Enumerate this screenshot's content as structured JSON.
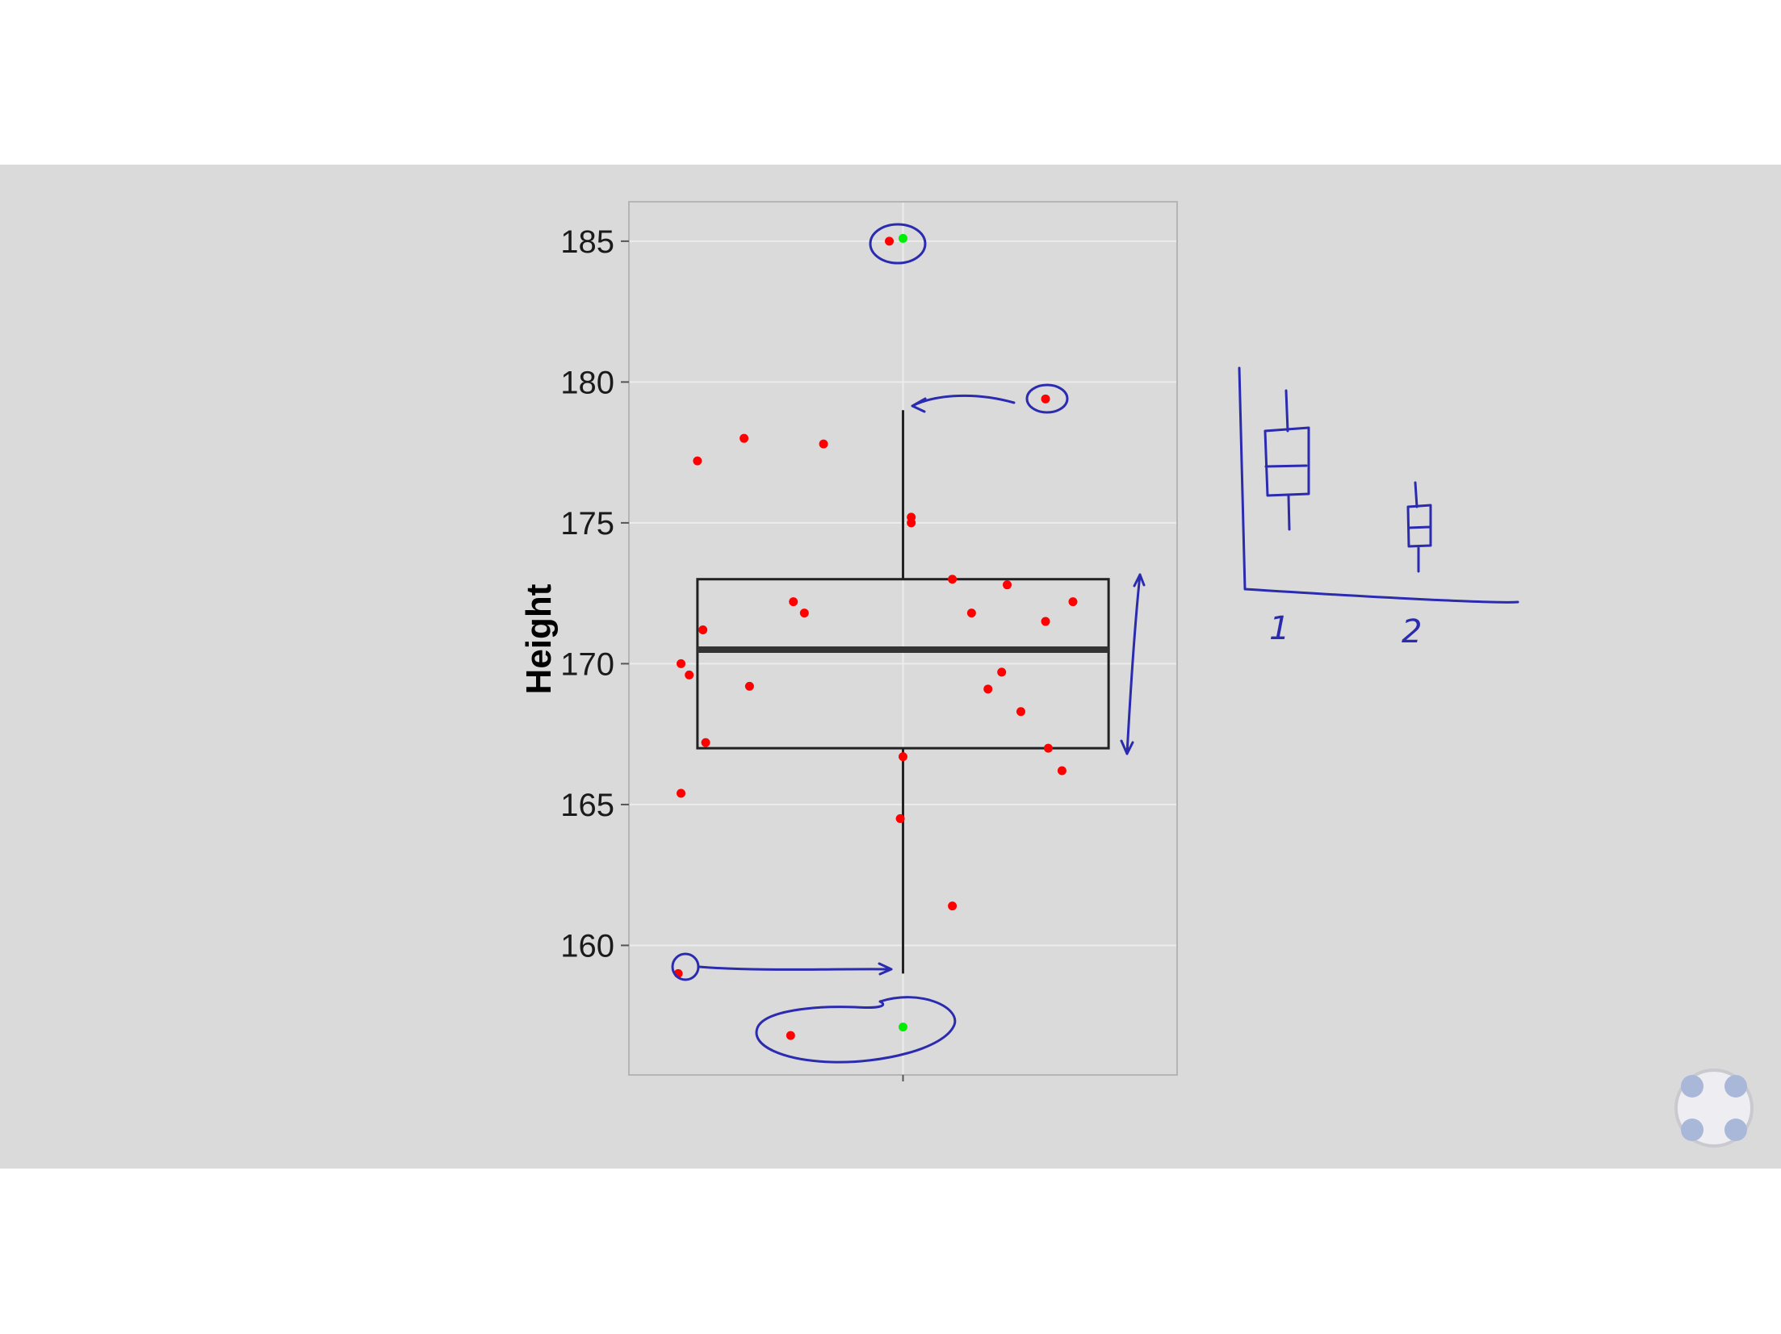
{
  "chart_data": {
    "type": "boxplot",
    "ylabel": "Height",
    "ylim": [
      155.4,
      186.4
    ],
    "yticks": [
      160,
      165,
      170,
      175,
      180,
      185
    ],
    "grid": true,
    "box": {
      "q1": 167,
      "median": 170.5,
      "q3": 173,
      "whisker_low": 159,
      "whisker_high": 179
    },
    "points": [
      {
        "x": 0.95,
        "y": 185,
        "highlight": false
      },
      {
        "x": 0.25,
        "y": 177.2,
        "highlight": false
      },
      {
        "x": 0.42,
        "y": 178,
        "highlight": false
      },
      {
        "x": 0.71,
        "y": 177.8,
        "highlight": false
      },
      {
        "x": 1.52,
        "y": 179.4,
        "highlight": false
      },
      {
        "x": 1.03,
        "y": 175.2,
        "highlight": false
      },
      {
        "x": 1.03,
        "y": 175,
        "highlight": false
      },
      {
        "x": 0.6,
        "y": 172.2,
        "highlight": false
      },
      {
        "x": 0.64,
        "y": 171.8,
        "highlight": false
      },
      {
        "x": 1.18,
        "y": 173,
        "highlight": false
      },
      {
        "x": 1.38,
        "y": 172.8,
        "highlight": false
      },
      {
        "x": 1.62,
        "y": 172.2,
        "highlight": false
      },
      {
        "x": 1.25,
        "y": 171.8,
        "highlight": false
      },
      {
        "x": 1.52,
        "y": 171.5,
        "highlight": false
      },
      {
        "x": 0.27,
        "y": 171.2,
        "highlight": false
      },
      {
        "x": 0.19,
        "y": 170,
        "highlight": false
      },
      {
        "x": 0.22,
        "y": 169.6,
        "highlight": false
      },
      {
        "x": 0.44,
        "y": 169.2,
        "highlight": false
      },
      {
        "x": 1.31,
        "y": 169.1,
        "highlight": false
      },
      {
        "x": 1.36,
        "y": 169.7,
        "highlight": false
      },
      {
        "x": 1.43,
        "y": 168.3,
        "highlight": false
      },
      {
        "x": 0.28,
        "y": 167.2,
        "highlight": false
      },
      {
        "x": 1.53,
        "y": 167,
        "highlight": false
      },
      {
        "x": 1.0,
        "y": 166.7,
        "highlight": false
      },
      {
        "x": 1.58,
        "y": 166.2,
        "highlight": false
      },
      {
        "x": 0.19,
        "y": 165.4,
        "highlight": false
      },
      {
        "x": 0.99,
        "y": 164.5,
        "highlight": false
      },
      {
        "x": 1.18,
        "y": 161.4,
        "highlight": false
      },
      {
        "x": 0.18,
        "y": 159,
        "highlight": false
      },
      {
        "x": 0.59,
        "y": 156.8,
        "highlight": false
      },
      {
        "x": 1.0,
        "y": 185.1,
        "highlight": true
      },
      {
        "x": 1.0,
        "y": 157.1,
        "highlight": true
      }
    ],
    "colors": {
      "point": "#ff0000",
      "highlight": "#00ee00",
      "panel": "#dadada",
      "box_line": "#222222",
      "median_line": "#333333",
      "annotation": "#2b2bb0"
    }
  },
  "annotation": {
    "sketch_labels": [
      "1",
      "2"
    ]
  },
  "player": {
    "control_icon": "fullscreen-icon"
  }
}
